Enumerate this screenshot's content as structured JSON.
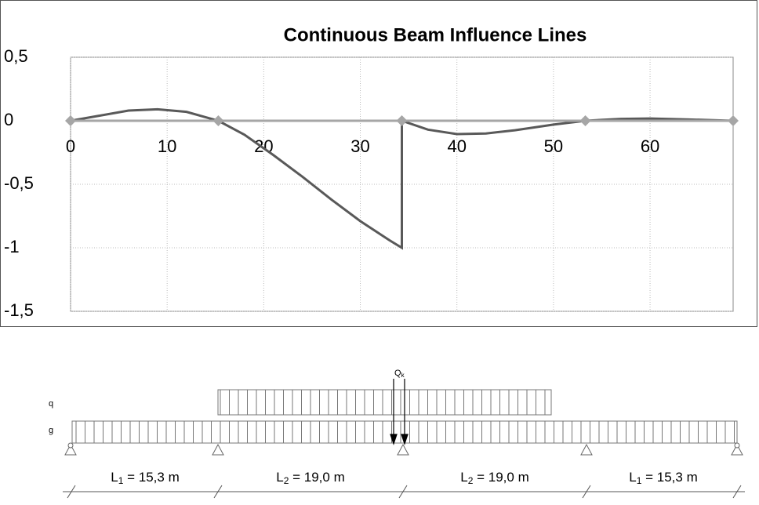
{
  "chart_data": {
    "type": "line",
    "title": "Continuous Beam Influence Lines",
    "xlim": [
      0,
      68.6
    ],
    "xticks": [
      0,
      10,
      20,
      30,
      40,
      50,
      60
    ],
    "ylim": [
      -1.5,
      0.5
    ],
    "yticks": [
      {
        "value": 0.5,
        "label": "0,5"
      },
      {
        "value": 0,
        "label": "0"
      },
      {
        "value": -0.5,
        "label": "-0,5"
      },
      {
        "value": -1,
        "label": "-1"
      },
      {
        "value": -1.5,
        "label": "-1,5"
      }
    ],
    "grid": true,
    "series": [
      {
        "color": "#595959",
        "marker": "none",
        "x": [
          0,
          3,
          6,
          9,
          12,
          15.3,
          18,
          21,
          24,
          27,
          30,
          33,
          34.3,
          34.3,
          37,
          40,
          43,
          46,
          50,
          53.3,
          57,
          60,
          64,
          68.6
        ],
        "values": [
          0,
          0.04,
          0.08,
          0.09,
          0.07,
          0,
          -0.11,
          -0.27,
          -0.44,
          -0.62,
          -0.79,
          -0.94,
          -1,
          0,
          -0.07,
          -0.105,
          -0.1,
          -0.075,
          -0.03,
          0,
          0.015,
          0.018,
          0.01,
          0
        ]
      },
      {
        "color": "#a6a6a6",
        "marker": "diamond",
        "x": [
          0,
          15.3,
          34.3,
          53.3,
          68.6
        ],
        "values": [
          0,
          0,
          0,
          0,
          0
        ]
      }
    ]
  },
  "diagram": {
    "load_q": "q",
    "load_g": "g",
    "point_load": {
      "symbol": "Q",
      "sub": "k"
    },
    "spans": [
      {
        "symbol": "L",
        "sub": "1",
        "text": " = 15,3 m"
      },
      {
        "symbol": "L",
        "sub": "2",
        "text": " = 19,0 m"
      },
      {
        "symbol": "L",
        "sub": "2",
        "text": " = 19,0 m"
      },
      {
        "symbol": "L",
        "sub": "1",
        "text": " = 15,3 m"
      }
    ]
  }
}
